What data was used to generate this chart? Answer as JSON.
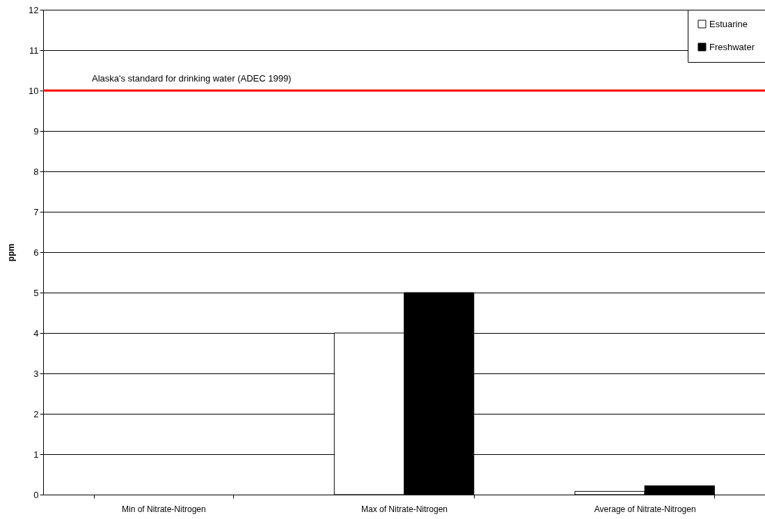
{
  "chart_data": {
    "type": "bar",
    "ylabel": "ppm",
    "categories": [
      "Min of Nitrate-Nitrogen",
      "Max of Nitrate-Nitrogen",
      "Average of Nitrate-Nitrogen"
    ],
    "series": [
      {
        "name": "Estuarine",
        "color": "#ffffff",
        "values": [
          null,
          4,
          0.08
        ]
      },
      {
        "name": "Freshwater",
        "color": "#000000",
        "values": [
          null,
          5,
          0.22
        ]
      }
    ],
    "ylim": [
      0,
      12
    ],
    "yticks": [
      0,
      1,
      2,
      3,
      4,
      5,
      6,
      7,
      8,
      9,
      10,
      11,
      12
    ],
    "grid": "y",
    "legend": "top right",
    "ref_lines": [
      {
        "axis": "y",
        "value": 10,
        "label": "Alaska's standard for drinking water (ADEC 1999)",
        "color": "#ff0000"
      }
    ]
  }
}
